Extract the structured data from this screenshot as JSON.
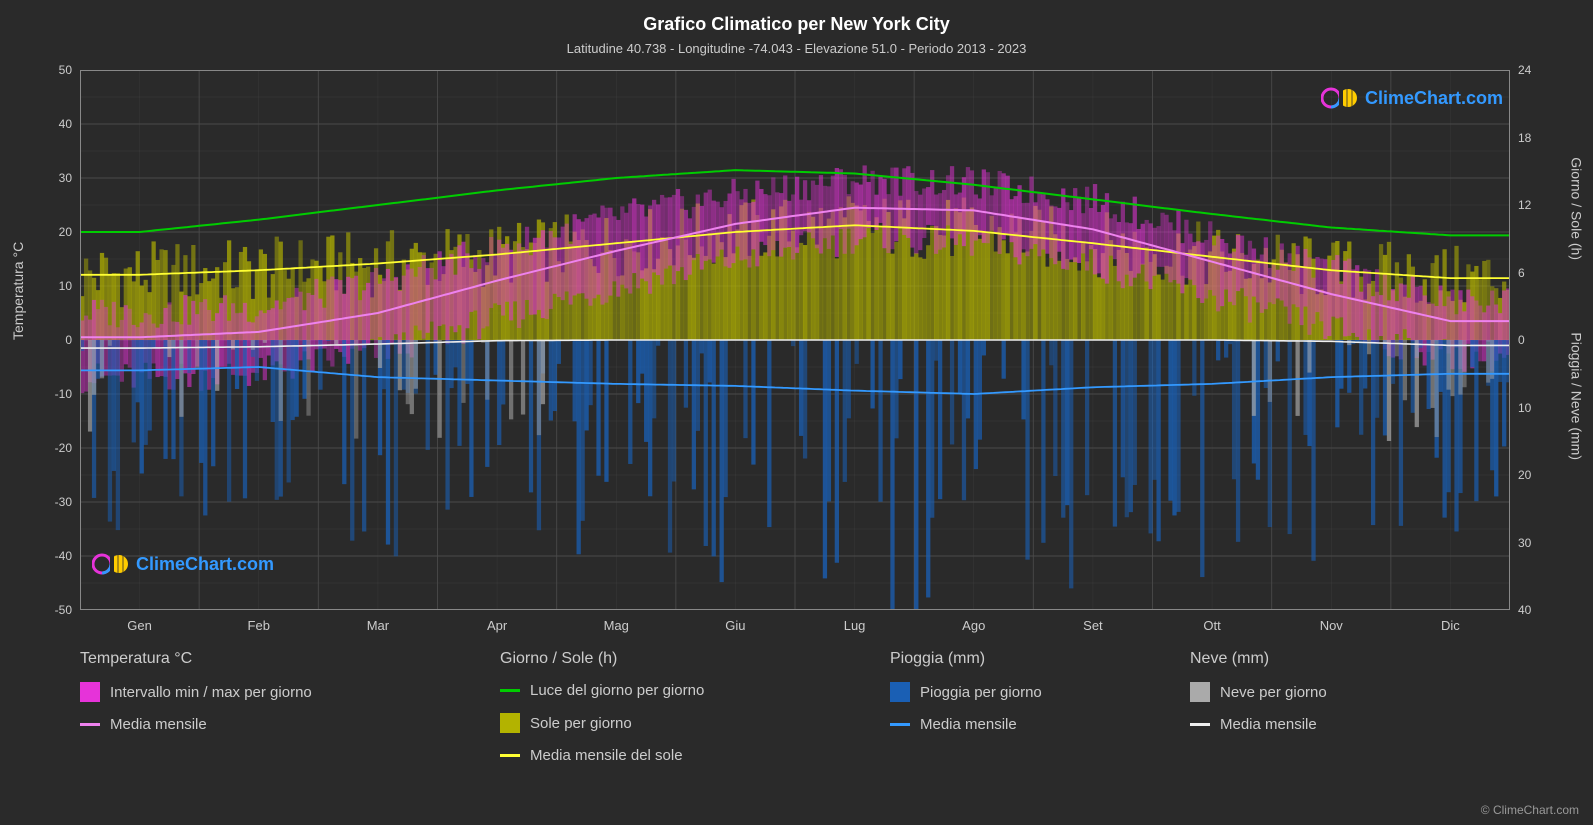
{
  "title": "Grafico Climatico per New York City",
  "subtitle": "Latitudine 40.738 - Longitudine -74.043 - Elevazione 51.0 - Periodo 2013 - 2023",
  "watermark_text": "ClimeChart.com",
  "watermark_color": "#3399ff",
  "copyright": "© ClimeChart.com",
  "background_color": "#2a2a2a",
  "plot_background": "#1f1f1f",
  "grid_color": "#4d4d4d",
  "text_color": "#cccccc",
  "axis_left": {
    "label": "Temperatura °C",
    "min": -50,
    "max": 50,
    "step": 10,
    "ticks": [
      50,
      40,
      30,
      20,
      10,
      0,
      -10,
      -20,
      -30,
      -40,
      -50
    ]
  },
  "axis_right_top": {
    "label": "Giorno / Sole (h)",
    "ticks": [
      24,
      18,
      12,
      6,
      0
    ],
    "range_in_temp": [
      0,
      50
    ]
  },
  "axis_right_bottom": {
    "label": "Pioggia / Neve (mm)",
    "ticks": [
      0,
      10,
      20,
      30,
      40
    ],
    "range_in_temp": [
      0,
      -50
    ]
  },
  "months": [
    "Gen",
    "Feb",
    "Mar",
    "Apr",
    "Mag",
    "Giu",
    "Lug",
    "Ago",
    "Set",
    "Ott",
    "Nov",
    "Dic"
  ],
  "series": {
    "temp_range_color": "#e633d9",
    "temp_mean_color": "#ee82ee",
    "daylight_color": "#00cc00",
    "sun_fill_color": "#b3b300",
    "sun_mean_color": "#ffff33",
    "rain_fill_color": "#1a5fb4",
    "rain_mean_color": "#3399ff",
    "snow_fill_color": "#aaaaaa",
    "snow_mean_color": "#eeeeee"
  },
  "days_per_month": 30,
  "data_monthly": {
    "daylight_h": [
      9.6,
      10.7,
      12.0,
      13.3,
      14.4,
      15.1,
      14.8,
      13.8,
      12.5,
      11.2,
      10.0,
      9.3
    ],
    "sun_mean_h": [
      5.8,
      6.2,
      6.8,
      7.6,
      8.6,
      9.6,
      10.2,
      9.7,
      8.6,
      7.4,
      6.2,
      5.5
    ],
    "temp_mean_c": [
      0.5,
      1.5,
      5.0,
      11.0,
      16.5,
      21.5,
      24.5,
      24.0,
      20.5,
      14.5,
      8.5,
      3.5
    ],
    "temp_min_c": [
      -7,
      -6,
      -2,
      4,
      10,
      15,
      19,
      18,
      14,
      8,
      2,
      -3
    ],
    "temp_max_c": [
      5,
      6,
      11,
      17,
      23,
      27,
      30,
      29,
      26,
      19,
      13,
      7
    ],
    "rain_mean_mm": [
      4.5,
      4.0,
      5.5,
      6.0,
      6.5,
      6.8,
      7.5,
      8.0,
      7.0,
      6.5,
      5.5,
      5.0
    ],
    "snow_mean_mm": [
      1.2,
      1.0,
      0.6,
      0.1,
      0,
      0,
      0,
      0,
      0,
      0,
      0.2,
      0.8
    ]
  },
  "daily_noise": {
    "temp_spread": 6,
    "sun_spread": 3,
    "rain_max": 30,
    "rain_prob": 0.35,
    "snow_max": 15,
    "snow_prob_winter": 0.25
  },
  "legend": {
    "cols": [
      {
        "header": "Temperatura °C",
        "items": [
          {
            "type": "swatch",
            "color": "#e633d9",
            "label": "Intervallo min / max per giorno"
          },
          {
            "type": "line",
            "color": "#ee82ee",
            "label": "Media mensile"
          }
        ]
      },
      {
        "header": "Giorno / Sole (h)",
        "items": [
          {
            "type": "line",
            "color": "#00cc00",
            "label": "Luce del giorno per giorno"
          },
          {
            "type": "swatch",
            "color": "#b3b300",
            "label": "Sole per giorno"
          },
          {
            "type": "line",
            "color": "#ffff33",
            "label": "Media mensile del sole"
          }
        ]
      },
      {
        "header": "Pioggia (mm)",
        "items": [
          {
            "type": "swatch",
            "color": "#1a5fb4",
            "label": "Pioggia per giorno"
          },
          {
            "type": "line",
            "color": "#3399ff",
            "label": "Media mensile"
          }
        ]
      },
      {
        "header": "Neve (mm)",
        "items": [
          {
            "type": "swatch",
            "color": "#aaaaaa",
            "label": "Neve per giorno"
          },
          {
            "type": "line",
            "color": "#eeeeee",
            "label": "Media mensile"
          }
        ]
      }
    ]
  }
}
